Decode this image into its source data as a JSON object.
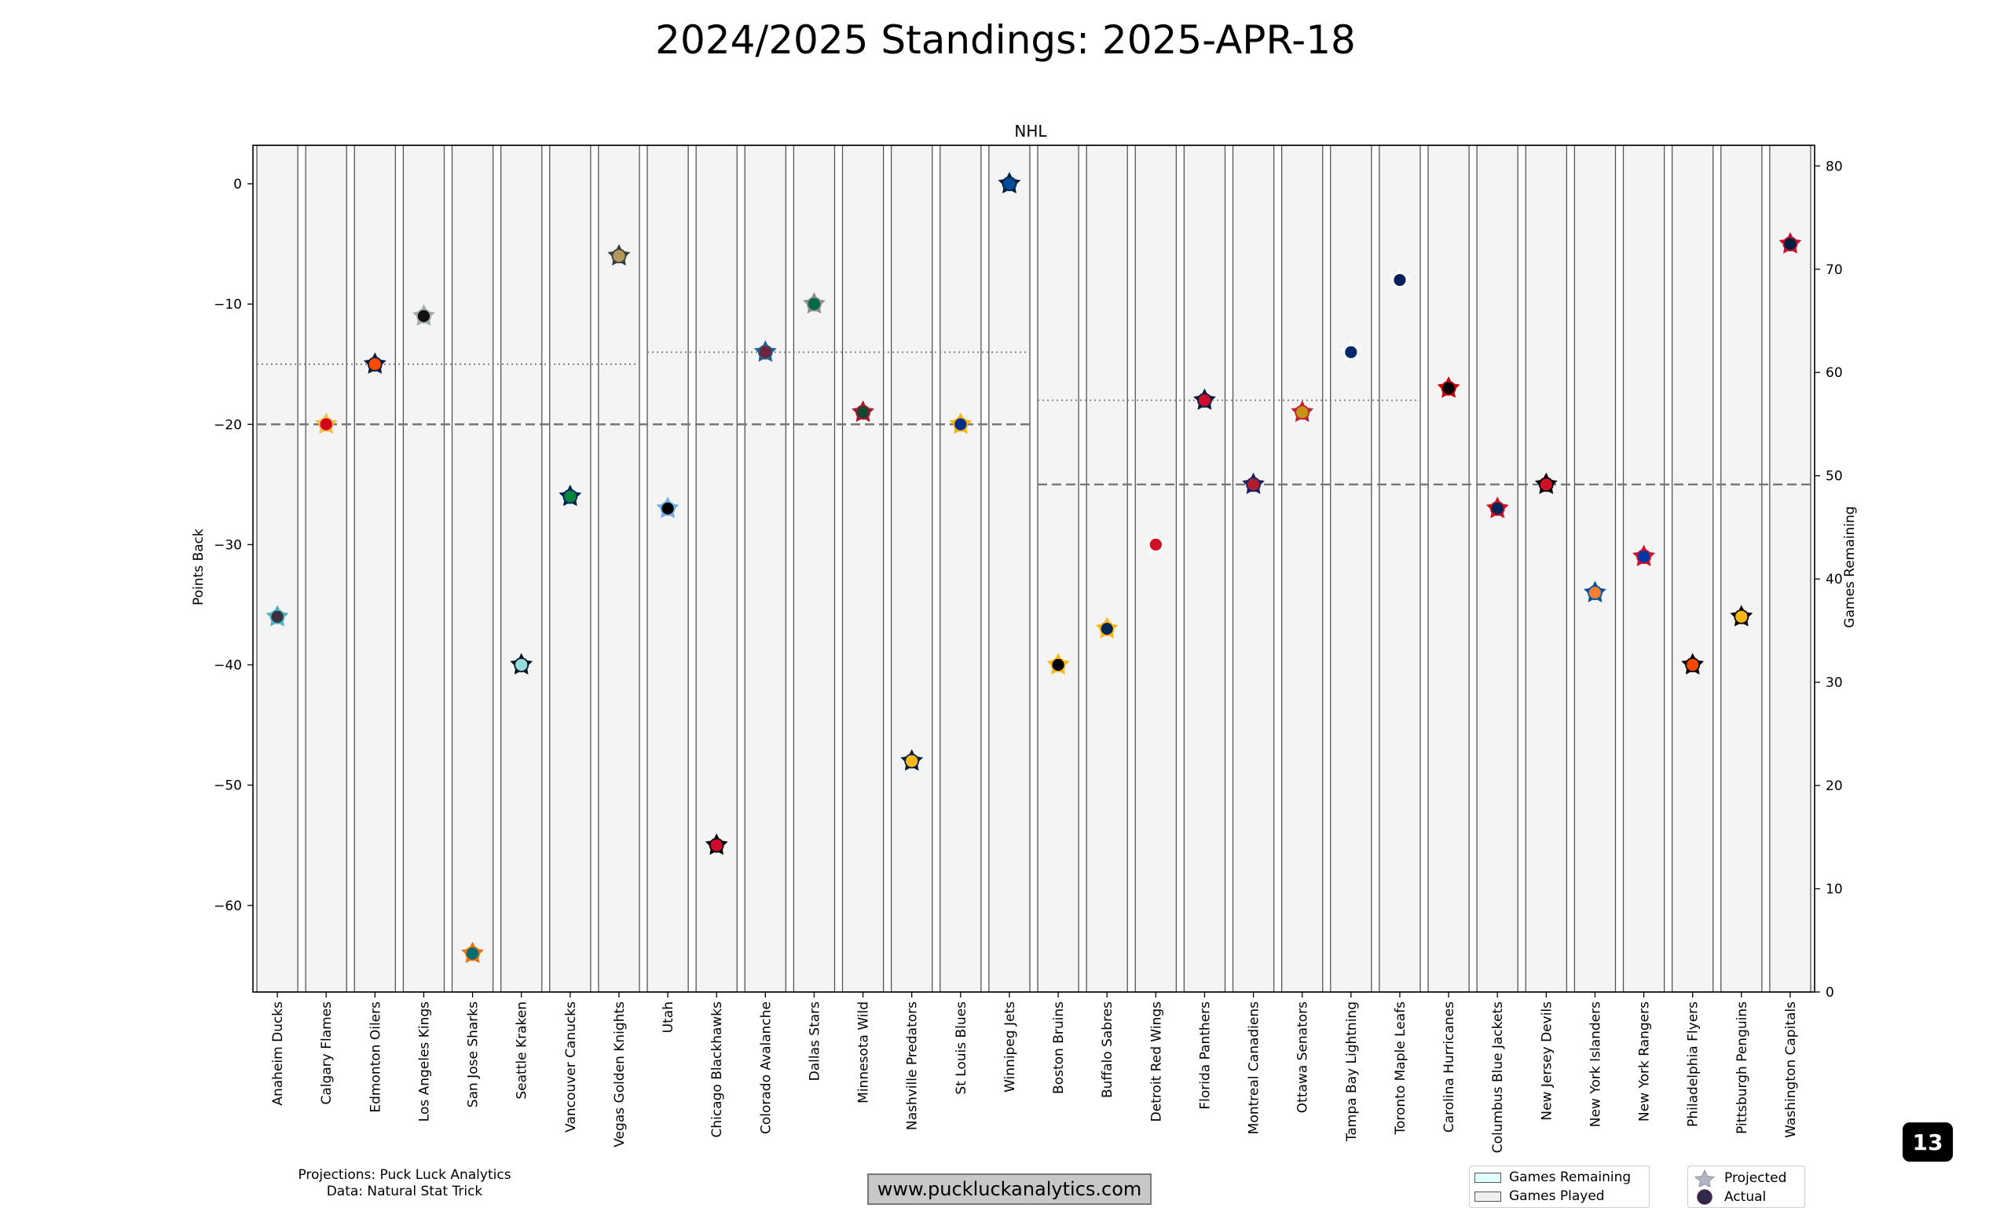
{
  "page": {
    "title": "2024/2025 Standings: 2025-APR-18",
    "badge": "13",
    "website": "www.puckluckanalytics.com",
    "credits": [
      "Projections: Puck Luck Analytics",
      "Data: Natural Stat Trick"
    ],
    "legend_fill": [
      {
        "label": "Games Remaining",
        "color": "#e0ffff"
      },
      {
        "label": "Games Played",
        "color": "#f0f0f0"
      }
    ],
    "legend_marker": [
      {
        "label": "Projected",
        "marker": "star",
        "color": "#b0b4c0"
      },
      {
        "label": "Actual",
        "marker": "circle",
        "color": "#2e2a4a"
      }
    ]
  },
  "chart_data": {
    "type": "scatter",
    "title": "NHL",
    "ylabel": "Points Back",
    "y2label": "Games Remaining",
    "ylim": [
      -67.2,
      3.2
    ],
    "y2lim": [
      0,
      82
    ],
    "yticks": [
      0,
      -10,
      -20,
      -30,
      -40,
      -50,
      -60
    ],
    "y2ticks": [
      0,
      10,
      20,
      30,
      40,
      50,
      60,
      70,
      80
    ],
    "grid": false,
    "categories": [
      "Anaheim Ducks",
      "Calgary Flames",
      "Edmonton Oilers",
      "Los Angeles Kings",
      "San Jose Sharks",
      "Seattle Kraken",
      "Vancouver Canucks",
      "Vegas Golden Knights",
      "Utah",
      "Chicago Blackhawks",
      "Colorado Avalanche",
      "Dallas Stars",
      "Minnesota Wild",
      "Nashville Predators",
      "St Louis Blues",
      "Winnipeg Jets",
      "Boston Bruins",
      "Buffalo Sabres",
      "Detroit Red Wings",
      "Florida Panthers",
      "Montreal Canadiens",
      "Ottawa Senators",
      "Tampa Bay Lightning",
      "Toronto Maple Leafs",
      "Carolina Hurricanes",
      "Columbus Blue Jackets",
      "New Jersey Devils",
      "New York Islanders",
      "New York Rangers",
      "Philadelphia Flyers",
      "Pittsburgh Penguins",
      "Washington Capitals"
    ],
    "actual_points_back": [
      -36,
      -20,
      -15,
      -11,
      -64,
      -40,
      -26,
      -6,
      -27,
      -55,
      -14,
      -10,
      -19,
      -48,
      -20,
      0,
      -40,
      -37,
      -30,
      -18,
      -25,
      -19,
      -14,
      -8,
      -17,
      -27,
      -25,
      -34,
      -31,
      -40,
      -36,
      -5
    ],
    "projected_points_back": [
      -36,
      -20,
      -15,
      -11,
      -64,
      -40,
      -26,
      -6,
      -27,
      -55,
      -14,
      -10,
      -19,
      -48,
      -20,
      0,
      -40,
      -37,
      -30,
      -18,
      -25,
      -19,
      -14,
      -8,
      -17,
      -27,
      -25,
      -34,
      -31,
      -40,
      -36,
      -5
    ],
    "games_remaining": [
      0,
      0,
      0,
      0,
      0,
      0,
      0,
      0,
      0,
      0,
      0,
      0,
      0,
      0,
      0,
      0,
      0,
      0,
      0,
      0,
      0,
      0,
      0,
      0,
      0,
      0,
      0,
      0,
      0,
      0,
      0,
      0
    ],
    "team_colors": [
      {
        "fill": "#3a3040",
        "edge": "#4fb2c0"
      },
      {
        "fill": "#d2001c",
        "edge": "#f1be48"
      },
      {
        "fill": "#ff4c00",
        "edge": "#041e42"
      },
      {
        "fill": "#111111",
        "edge": "#a2aaad"
      },
      {
        "fill": "#006d75",
        "edge": "#ea7200"
      },
      {
        "fill": "#99d9d9",
        "edge": "#001628"
      },
      {
        "fill": "#00843d",
        "edge": "#00205b"
      },
      {
        "fill": "#b4975a",
        "edge": "#333f42"
      },
      {
        "fill": "#010101",
        "edge": "#71afe5"
      },
      {
        "fill": "#cf0a2c",
        "edge": "#000000"
      },
      {
        "fill": "#6f263d",
        "edge": "#236192"
      },
      {
        "fill": "#006847",
        "edge": "#8f8f8c"
      },
      {
        "fill": "#154734",
        "edge": "#a6192e"
      },
      {
        "fill": "#ffb81c",
        "edge": "#041e42"
      },
      {
        "fill": "#002f87",
        "edge": "#fcb514"
      },
      {
        "fill": "#004c97",
        "edge": "#041e42"
      },
      {
        "fill": "#010101",
        "edge": "#ffb81c"
      },
      {
        "fill": "#002654",
        "edge": "#fcb514"
      },
      {
        "fill": "#ce1126",
        "edge": "#ffffff"
      },
      {
        "fill": "#c8102e",
        "edge": "#041e42"
      },
      {
        "fill": "#af1e2d",
        "edge": "#192168"
      },
      {
        "fill": "#c69214",
        "edge": "#c52032"
      },
      {
        "fill": "#002868",
        "edge": "#ffffff"
      },
      {
        "fill": "#00205b",
        "edge": "#ffffff"
      },
      {
        "fill": "#000000",
        "edge": "#cc0000"
      },
      {
        "fill": "#002654",
        "edge": "#ce1126"
      },
      {
        "fill": "#ce1126",
        "edge": "#000000"
      },
      {
        "fill": "#f47d30",
        "edge": "#00539b"
      },
      {
        "fill": "#0038a8",
        "edge": "#ce1126"
      },
      {
        "fill": "#f74902",
        "edge": "#000000"
      },
      {
        "fill": "#fcb514",
        "edge": "#000000"
      },
      {
        "fill": "#041e42",
        "edge": "#c8102e"
      }
    ],
    "reference_lines": [
      {
        "style": "dotted",
        "from_index": 0,
        "to_index": 7,
        "y": -15
      },
      {
        "style": "dotted",
        "from_index": 8,
        "to_index": 15,
        "y": -14
      },
      {
        "style": "dotted",
        "from_index": 16,
        "to_index": 23,
        "y": -18
      },
      {
        "style": "dashed",
        "from_index": 0,
        "to_index": 15,
        "y": -20
      },
      {
        "style": "dashed",
        "from_index": 16,
        "to_index": 31,
        "y": -25
      }
    ]
  }
}
